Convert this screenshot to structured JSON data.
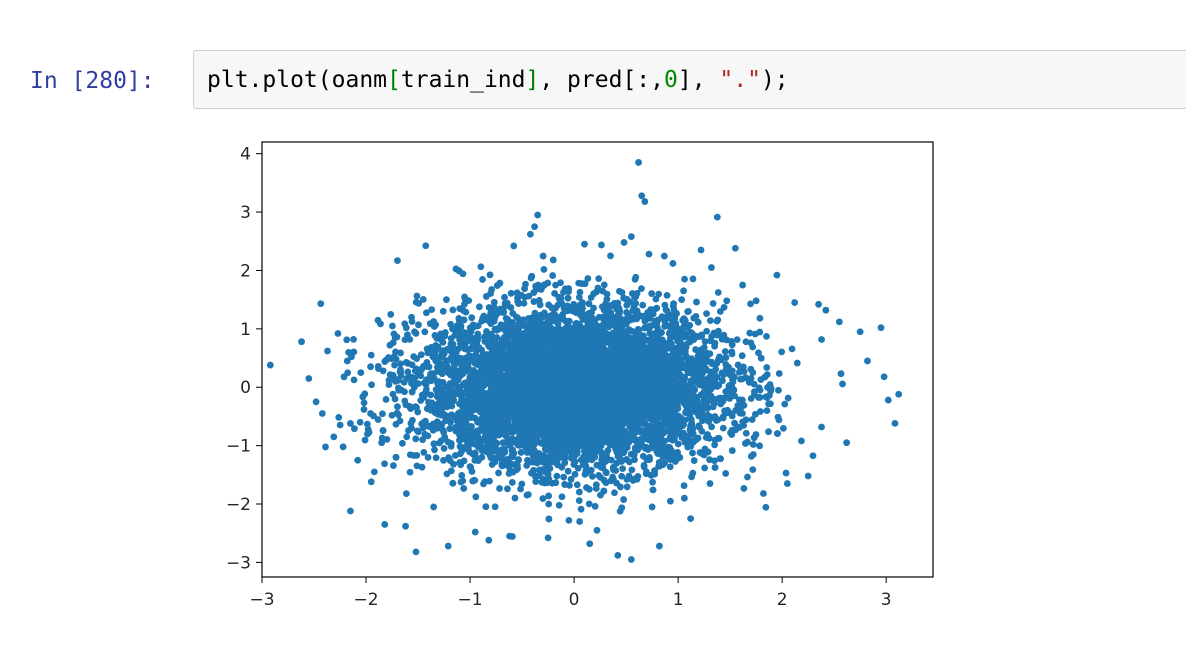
{
  "cell": {
    "prompt": "In [280]:",
    "code": {
      "part1": "plt.plot(oanm",
      "bracket_open": "[",
      "part2": "train_ind",
      "bracket_close": "]",
      "part3": ", pred[:,",
      "number": "0",
      "part4": "], ",
      "string": "\".\"",
      "part5": ");"
    }
  },
  "colors": {
    "prompt": "#303f9f",
    "code_background": "#f7f7f7",
    "code_border": "#cfcfcf",
    "point_color": "#1f77b4",
    "axes_color": "#000000"
  },
  "chart_data": {
    "type": "scatter",
    "title": "",
    "xlabel": "",
    "ylabel": "",
    "xlim": [
      -3.0,
      3.45
    ],
    "ylim": [
      -3.25,
      4.2
    ],
    "xticks": [
      -3,
      -2,
      -1,
      0,
      1,
      2,
      3
    ],
    "yticks": [
      -3,
      -2,
      -1,
      0,
      1,
      2,
      3,
      4
    ],
    "xtick_labels": [
      "−3",
      "−2",
      "−1",
      "0",
      "1",
      "2",
      "3"
    ],
    "ytick_labels": [
      "−3",
      "−2",
      "−1",
      "0",
      "1",
      "2",
      "3",
      "4"
    ],
    "marker": ".",
    "color": "#1f77b4",
    "grid": false,
    "legend": "none",
    "series": [
      {
        "x": [
          -2.92,
          -2.62,
          -2.55,
          -2.48,
          -2.42,
          -2.37,
          -2.31,
          -2.27,
          -2.22,
          -2.18,
          -2.15,
          -2.12,
          -2.08,
          -2.05,
          -2.02,
          -1.98,
          -1.95,
          -1.92,
          -1.88,
          -1.85,
          -1.82,
          -1.78,
          -1.75,
          -1.72,
          -1.52,
          -1.21,
          -0.95,
          -0.82,
          -0.62,
          -0.58,
          -0.42,
          -0.35,
          -0.2,
          -0.05,
          0.1,
          0.22,
          0.35,
          0.42,
          0.48,
          0.55,
          0.62,
          0.68,
          0.75,
          0.82,
          0.95,
          1.12,
          1.22,
          1.32,
          1.55,
          1.62,
          1.75,
          1.82,
          1.95,
          2.05,
          2.12,
          2.25,
          2.35,
          2.42,
          2.55,
          2.62,
          2.75,
          2.82,
          2.95,
          2.98,
          3.02,
          3.12,
          -2.15,
          -1.95,
          -1.62,
          -1.35,
          0.65,
          0.72,
          0.55,
          -0.25,
          -0.38,
          0.15
        ],
        "y": [
          0.38,
          0.78,
          0.15,
          -0.25,
          -0.45,
          0.62,
          -0.85,
          0.92,
          -1.02,
          0.45,
          -0.62,
          0.82,
          -1.25,
          0.25,
          -0.38,
          -0.72,
          0.55,
          -1.45,
          0.32,
          -0.95,
          -2.35,
          0.12,
          -0.48,
          0.85,
          -2.82,
          -2.72,
          -2.48,
          -2.62,
          -2.55,
          2.42,
          2.62,
          2.95,
          2.18,
          -2.28,
          2.45,
          -2.45,
          2.25,
          -2.88,
          2.48,
          -2.95,
          3.85,
          3.18,
          -2.05,
          -2.72,
          2.12,
          -2.25,
          2.35,
          2.05,
          2.38,
          1.75,
          1.48,
          -1.82,
          1.92,
          -1.65,
          1.45,
          -1.52,
          1.42,
          1.32,
          1.12,
          -0.95,
          0.95,
          0.45,
          1.02,
          0.18,
          -0.22,
          -0.12,
          -2.12,
          -1.62,
          -2.38,
          -2.05,
          3.28,
          2.28,
          2.58,
          -2.58,
          2.75,
          -2.68
        ],
        "cluster": {
          "center": [
            0.0,
            0.0
          ],
          "spread_x": 0.72,
          "spread_y": 0.68,
          "count": 6500
        }
      }
    ]
  }
}
